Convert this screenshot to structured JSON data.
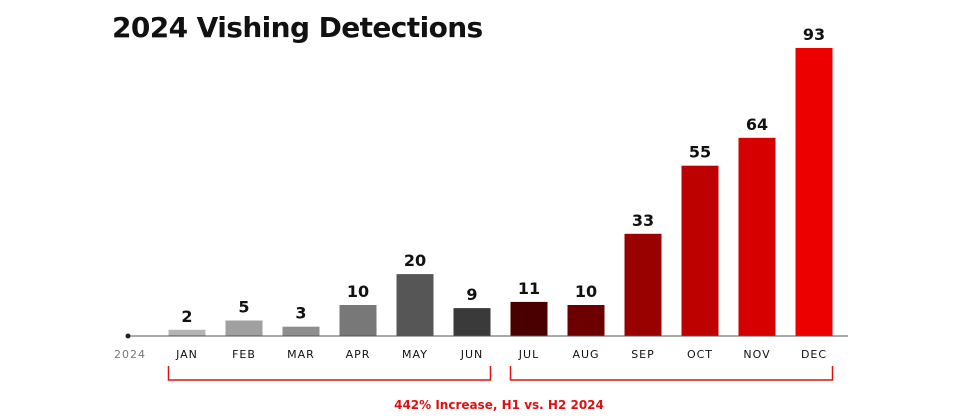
{
  "chart_data": {
    "type": "bar",
    "title": "2024 Vishing Detections",
    "year_label": "2024",
    "categories": [
      "JAN",
      "FEB",
      "MAR",
      "APR",
      "MAY",
      "JUN",
      "JUL",
      "AUG",
      "SEP",
      "OCT",
      "NOV",
      "DEC"
    ],
    "values": [
      2,
      5,
      3,
      10,
      20,
      9,
      11,
      10,
      33,
      55,
      64,
      93
    ],
    "bar_colors": [
      "#b4b4b4",
      "#a0a0a0",
      "#8e8e8e",
      "#787878",
      "#565656",
      "#3a3a3a",
      "#4a0000",
      "#6c0000",
      "#990000",
      "#bd0000",
      "#d60000",
      "#ec0000"
    ],
    "ylim": [
      0,
      93
    ],
    "grid": false,
    "legend": "none",
    "annotation": {
      "text": "442% Increase, H1 vs. H2 2024",
      "color": "#e01010",
      "groups": [
        {
          "from": "JAN",
          "to": "JUN"
        },
        {
          "from": "JUL",
          "to": "DEC"
        }
      ]
    },
    "axis_color": "#555555"
  }
}
